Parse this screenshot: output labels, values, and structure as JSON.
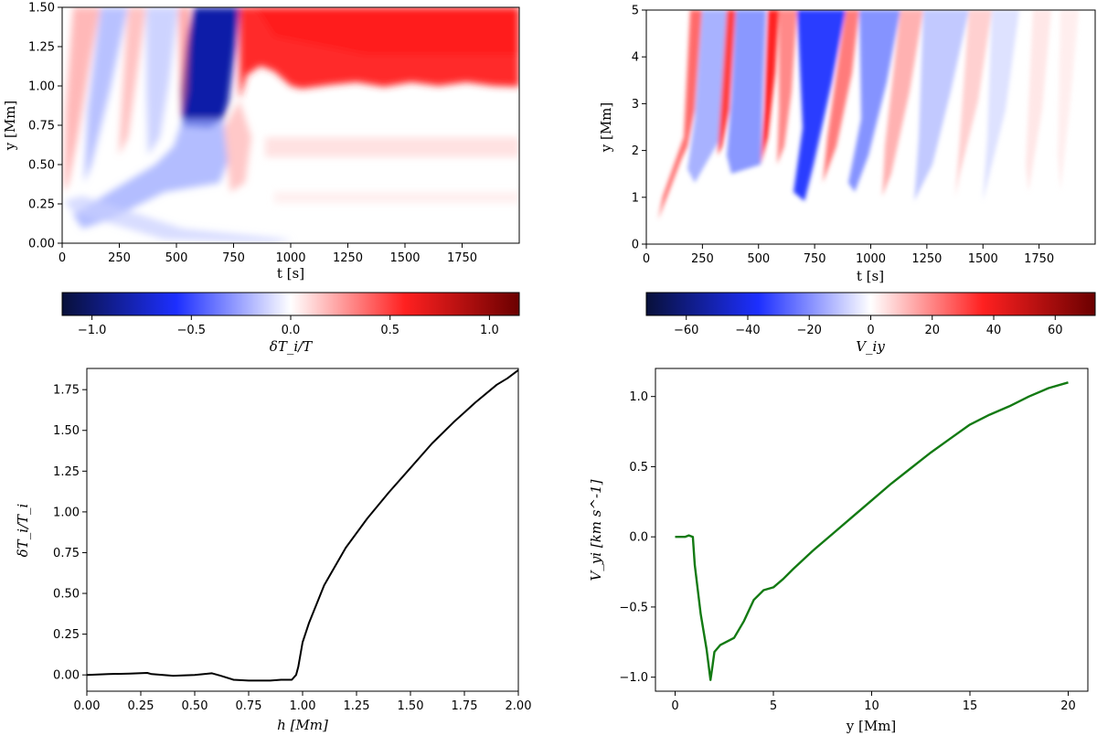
{
  "colors": {
    "diverging_low": "#08103a",
    "diverging_mid_blue": "#1d2fff",
    "diverging_white": "#ffffff",
    "diverging_mid_red": "#ff2020",
    "diverging_high": "#6b0000",
    "temperature_line": "#000000",
    "velocity_line": "#137a13"
  },
  "chart_data": [
    {
      "id": "temperature-map",
      "type": "heatmap",
      "xlabel": "t [s]",
      "ylabel": "y [Mm]",
      "xlim": [
        0,
        2000
      ],
      "ylim": [
        0,
        1.5
      ],
      "xticks": [
        "0",
        "250",
        "500",
        "750",
        "1000",
        "1250",
        "1500",
        "1750"
      ],
      "xtick_values": [
        0,
        250,
        500,
        750,
        1000,
        1250,
        1500,
        1750
      ],
      "yticks": [
        "0.00",
        "0.25",
        "0.50",
        "0.75",
        "1.00",
        "1.25",
        "1.50"
      ],
      "ytick_values": [
        0,
        0.25,
        0.5,
        0.75,
        1.0,
        1.25,
        1.5
      ],
      "colorbar": {
        "label": "δT_i/T",
        "range": [
          -1.15,
          1.15
        ],
        "ticks": [
          "−1.0",
          "−0.5",
          "0.0",
          "0.5",
          "1.0"
        ],
        "tick_values": [
          -1.0,
          -0.5,
          0.0,
          0.5,
          1.0
        ]
      }
    },
    {
      "id": "velocity-map",
      "type": "heatmap",
      "xlabel": "t [s]",
      "ylabel": "y [Mm]",
      "xlim": [
        0,
        2000
      ],
      "ylim": [
        0,
        5
      ],
      "xticks": [
        "0",
        "250",
        "500",
        "750",
        "1000",
        "1250",
        "1500",
        "1750"
      ],
      "xtick_values": [
        0,
        250,
        500,
        750,
        1000,
        1250,
        1500,
        1750
      ],
      "yticks": [
        "0",
        "1",
        "2",
        "3",
        "4",
        "5"
      ],
      "ytick_values": [
        0,
        1,
        2,
        3,
        4,
        5
      ],
      "colorbar": {
        "label": "V_iy",
        "range": [
          -73,
          73
        ],
        "ticks": [
          "−60",
          "−40",
          "−20",
          "0",
          "20",
          "40",
          "60"
        ],
        "tick_values": [
          -60,
          -40,
          -20,
          0,
          20,
          40,
          60
        ]
      }
    },
    {
      "id": "temperature-profile",
      "type": "line",
      "xlabel": "h [Mm]",
      "ylabel": "δT_i/T_i",
      "xlim": [
        0,
        2
      ],
      "ylim": [
        -0.1,
        1.88
      ],
      "xticks": [
        "0.00",
        "0.25",
        "0.50",
        "0.75",
        "1.00",
        "1.25",
        "1.50",
        "1.75",
        "2.00"
      ],
      "xtick_values": [
        0,
        0.25,
        0.5,
        0.75,
        1.0,
        1.25,
        1.5,
        1.75,
        2.0
      ],
      "yticks": [
        "0.00",
        "0.25",
        "0.50",
        "0.75",
        "1.00",
        "1.25",
        "1.50",
        "1.75"
      ],
      "ytick_values": [
        0,
        0.25,
        0.5,
        0.75,
        1.0,
        1.25,
        1.5,
        1.75
      ],
      "x": [
        0,
        0.1,
        0.2,
        0.28,
        0.3,
        0.4,
        0.5,
        0.58,
        0.62,
        0.68,
        0.75,
        0.85,
        0.9,
        0.95,
        0.97,
        0.98,
        1.0,
        1.03,
        1.1,
        1.2,
        1.3,
        1.4,
        1.5,
        1.6,
        1.7,
        1.8,
        1.9,
        1.95,
        2.0
      ],
      "y": [
        0.0,
        0.005,
        0.008,
        0.012,
        0.005,
        -0.005,
        0.0,
        0.01,
        -0.005,
        -0.03,
        -0.035,
        -0.035,
        -0.03,
        -0.03,
        0.0,
        0.05,
        0.2,
        0.32,
        0.55,
        0.78,
        0.96,
        1.12,
        1.27,
        1.42,
        1.55,
        1.67,
        1.78,
        1.82,
        1.87
      ]
    },
    {
      "id": "velocity-profile",
      "type": "line",
      "xlabel": "y [Mm]",
      "ylabel": "V_yi [km s^-1]",
      "xlim": [
        -1.0,
        21.0
      ],
      "ylim": [
        -1.1,
        1.2
      ],
      "xticks": [
        "0",
        "5",
        "10",
        "15",
        "20"
      ],
      "xtick_values": [
        0,
        5,
        10,
        15,
        20
      ],
      "yticks": [
        "−1.0",
        "−0.5",
        "0.0",
        "0.5",
        "1.0"
      ],
      "ytick_values": [
        -1.0,
        -0.5,
        0.0,
        0.5,
        1.0
      ],
      "x": [
        0,
        0.5,
        0.7,
        0.9,
        1.0,
        1.3,
        1.6,
        1.8,
        1.9,
        2.0,
        2.3,
        3.0,
        3.5,
        4.0,
        4.5,
        5.0,
        5.5,
        6.0,
        7.0,
        8.0,
        9.0,
        10.0,
        11.0,
        12.0,
        13.0,
        14.0,
        15.0,
        16.0,
        17.0,
        18.0,
        19.0,
        20.0
      ],
      "y": [
        0.0,
        0.0,
        0.01,
        0.0,
        -0.2,
        -0.55,
        -0.8,
        -1.02,
        -0.92,
        -0.82,
        -0.77,
        -0.72,
        -0.6,
        -0.45,
        -0.38,
        -0.36,
        -0.3,
        -0.23,
        -0.1,
        0.02,
        0.14,
        0.26,
        0.38,
        0.49,
        0.6,
        0.7,
        0.8,
        0.87,
        0.93,
        1.0,
        1.06,
        1.1
      ]
    }
  ]
}
